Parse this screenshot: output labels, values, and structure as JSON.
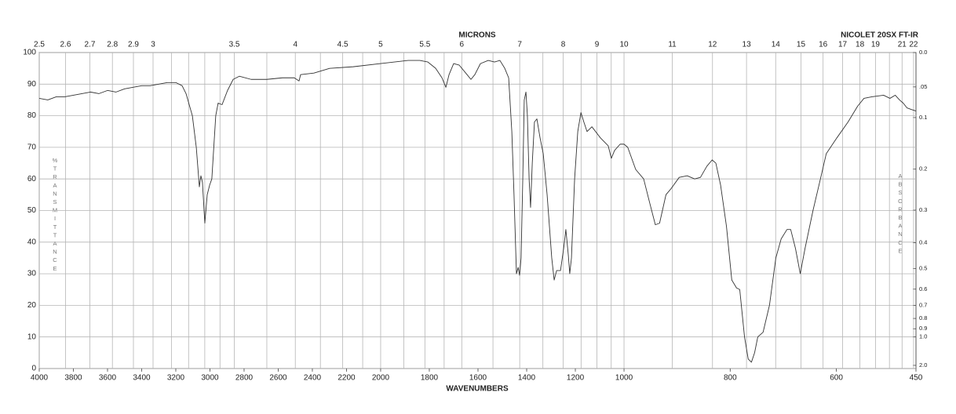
{
  "chart_data": {
    "type": "line",
    "title": "MICRONS",
    "subtitle": "NICOLET 20SX FT-IR",
    "xlabel": "WAVENUMBERS",
    "ylabel": "%TRANSMITTANCE",
    "y2label": "ABSORBANCE",
    "color": "#333333",
    "grid": true,
    "xlim": [
      4000,
      450
    ],
    "xbreaks": [
      2000,
      1000
    ],
    "ylim": [
      0,
      100
    ],
    "yticks": [
      0,
      10,
      20,
      30,
      40,
      50,
      60,
      70,
      80,
      90,
      100
    ],
    "xticks": [
      4000,
      3800,
      3600,
      3400,
      3200,
      3000,
      2800,
      2600,
      2400,
      2200,
      2000,
      1800,
      1600,
      1400,
      1200,
      1000,
      800,
      600,
      450
    ],
    "x2ticks": [
      2.5,
      2.6,
      2.7,
      2.8,
      2.9,
      3,
      3.5,
      4,
      4.5,
      5,
      5.5,
      6,
      7,
      8,
      9,
      10,
      11,
      12,
      13,
      14,
      15,
      16,
      17,
      18,
      19,
      21,
      22
    ],
    "x2minor": [
      3.1,
      3.2,
      3.3,
      3.4,
      3.75,
      4.25,
      4.75,
      5.25,
      5.75,
      6.5,
      7.5,
      8.5,
      9.5,
      20
    ],
    "y2ticks": [
      {
        "value": 0,
        "label": "0.0"
      },
      {
        "value": 0.05,
        "label": ".05"
      },
      0.1,
      0.2,
      0.3,
      0.4,
      0.5,
      0.6,
      0.7,
      0.8,
      0.9,
      {
        "value": 1,
        "label": "1.0"
      },
      {
        "value": 2,
        "label": "2.0"
      }
    ],
    "x": [
      4000,
      3950,
      3900,
      3850,
      3800,
      3750,
      3700,
      3650,
      3600,
      3550,
      3500,
      3450,
      3400,
      3350,
      3300,
      3250,
      3200,
      3163,
      3140,
      3103,
      3080,
      3062,
      3053,
      3044,
      3030,
      3016,
      3002,
      2989,
      2966,
      2952,
      2929,
      2897,
      2864,
      2828,
      2759,
      2667,
      2575,
      2506,
      2478,
      2469,
      2391,
      2299,
      2161,
      2000,
      1887,
      1839,
      1806,
      1774,
      1748,
      1732,
      1719,
      1700,
      1677,
      1645,
      1629,
      1613,
      1590,
      1558,
      1532,
      1510,
      1490,
      1474,
      1461,
      1452,
      1442,
      1435,
      1429,
      1423,
      1416,
      1410,
      1403,
      1397,
      1390,
      1384,
      1377,
      1368,
      1358,
      1345,
      1332,
      1316,
      1297,
      1287,
      1277,
      1261,
      1248,
      1239,
      1229,
      1223,
      1216,
      1203,
      1190,
      1177,
      1165,
      1152,
      1132,
      1097,
      1065,
      1052,
      1039,
      1016,
      1000,
      993,
      978,
      963,
      951,
      941,
      933,
      921,
      911,
      896,
      881,
      867,
      856,
      844,
      834,
      827,
      818,
      807,
      797,
      788,
      782,
      773,
      766,
      760,
      754,
      748,
      738,
      726,
      714,
      704,
      693,
      686,
      677,
      668,
      659,
      644,
      630,
      619,
      599,
      578,
      560,
      548,
      533,
      511,
      499,
      489,
      481,
      474,
      467,
      459,
      450
    ],
    "values": [
      85.5,
      85,
      86,
      86,
      86.5,
      87,
      87.5,
      87,
      88,
      87.5,
      88.5,
      89,
      89.5,
      89.5,
      90,
      90.5,
      90.5,
      89.5,
      87,
      80,
      70,
      57.5,
      61,
      59,
      46,
      55,
      58,
      60,
      80,
      84,
      83.5,
      88,
      91.5,
      92.5,
      91.5,
      91.5,
      92,
      92,
      91,
      93,
      93.5,
      95,
      95.5,
      96.5,
      97.5,
      97.5,
      97,
      95,
      92,
      89,
      93,
      96.5,
      96,
      93,
      91.5,
      93,
      96.5,
      97.5,
      97,
      97.5,
      95,
      92,
      75,
      55,
      30,
      32,
      29.5,
      35,
      60,
      85,
      87.5,
      80,
      60,
      51,
      65,
      78,
      79,
      73,
      68,
      55,
      35,
      28,
      31,
      31,
      38,
      44,
      36,
      30,
      35,
      60,
      75,
      81,
      78,
      75,
      76.5,
      73,
      70.5,
      66.5,
      69,
      71,
      71,
      70,
      63,
      60,
      52,
      45.5,
      46,
      55,
      57,
      60.5,
      61,
      60,
      60.5,
      64,
      66,
      65,
      58,
      45,
      28,
      25.5,
      25,
      10,
      3,
      2,
      5,
      10,
      11.5,
      20,
      35,
      41,
      44,
      44,
      38,
      30,
      38,
      50,
      60,
      68,
      73,
      78,
      83,
      85.5,
      86,
      86.5,
      85.5,
      86.5,
      85,
      84,
      82.5,
      82,
      81.5
    ]
  }
}
